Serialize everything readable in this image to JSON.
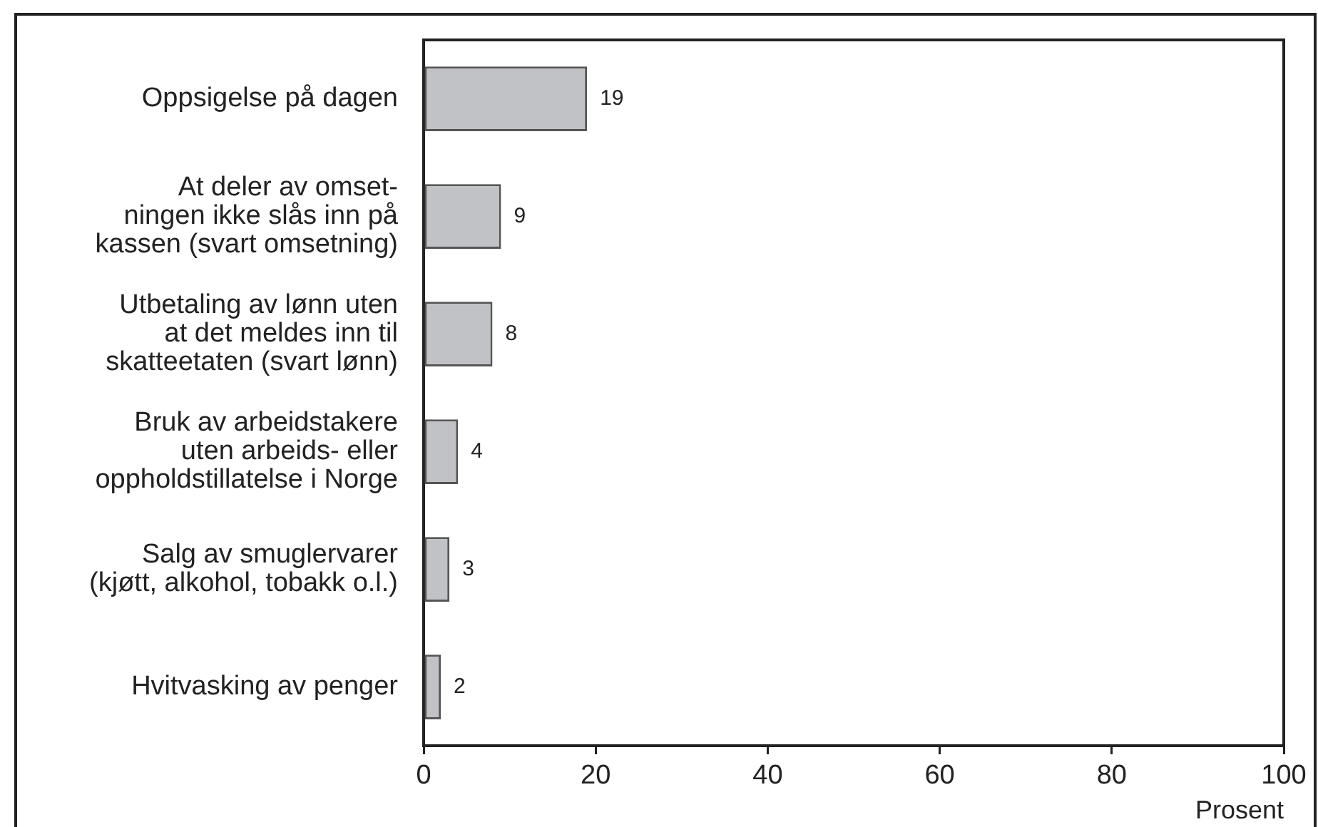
{
  "chart_data": {
    "type": "bar",
    "orientation": "horizontal",
    "categories": [
      "Oppsigelse på dagen",
      "At deler av omset-\nningen ikke slås inn på\nkassen (svart omsetning)",
      "Utbetaling av lønn uten\nat det meldes inn til\nskatteetaten (svart lønn)",
      "Bruk av arbeidstakere\nuten arbeids- eller\noppholdstillatelse i Norge",
      "Salg av smuglervarer\n(kjøtt, alkohol, tobakk o.l.)",
      "Hvitvasking av penger"
    ],
    "values": [
      19,
      9,
      8,
      4,
      3,
      2
    ],
    "color": "#c1c2c6",
    "xlabel": "Prosent",
    "xlim": [
      0,
      100
    ],
    "xticks": [
      0,
      20,
      40,
      60,
      80,
      100
    ],
    "data_labels": true
  }
}
